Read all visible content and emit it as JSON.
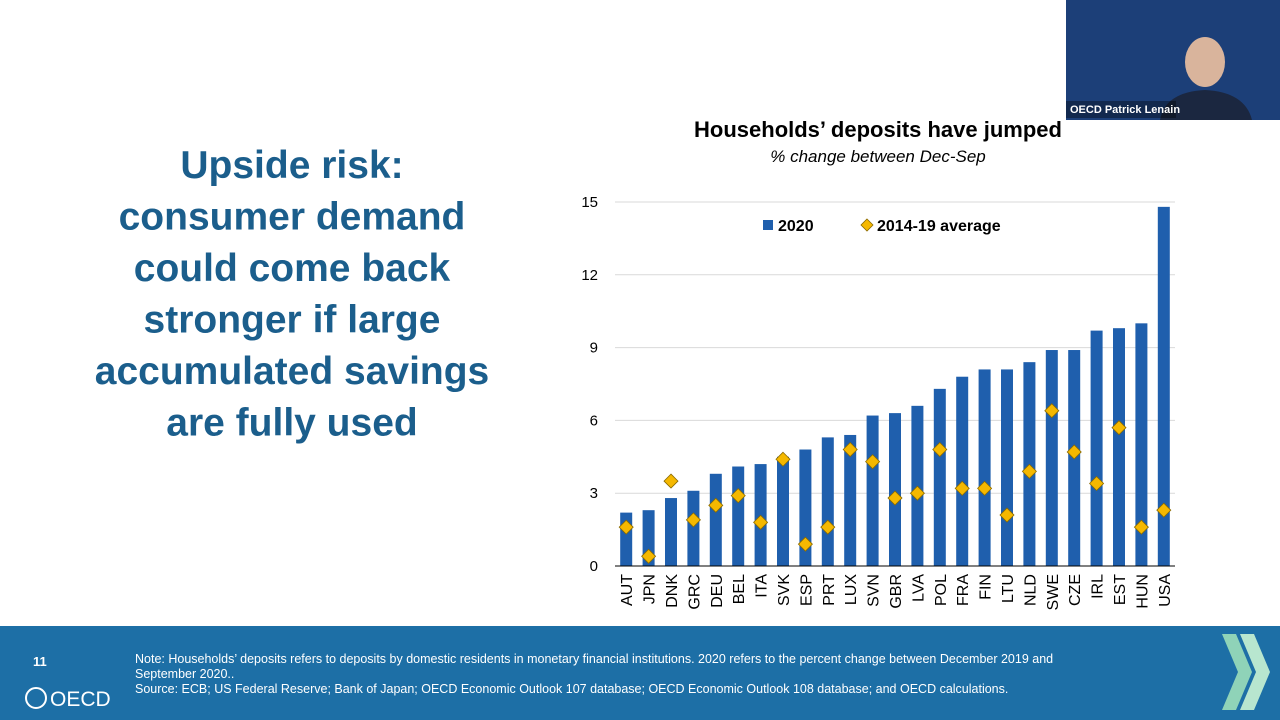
{
  "slide": {
    "heading_lines": [
      "Upside risk:",
      "consumer demand",
      "could come back",
      "stronger if large",
      "accumulated savings",
      "are fully used"
    ],
    "page_number": "11",
    "note": "Note: Households’ deposits refers to deposits by domestic residents in monetary financial institutions. 2020 refers to the percent change between December 2019 and September 2020..",
    "source": "Source: ECB; US Federal Reserve; Bank of Japan; OECD Economic Outlook 107 database; OECD Economic Outlook 108 database; and OECD calculations.",
    "logo": "OECD",
    "video_label": "OECD Patrick Lenain"
  },
  "chart_data": {
    "type": "bar",
    "title": "Households’ deposits have jumped",
    "subtitle": "% change between Dec-Sep",
    "categories": [
      "AUT",
      "JPN",
      "DNK",
      "GRC",
      "DEU",
      "BEL",
      "ITA",
      "SVK",
      "ESP",
      "PRT",
      "LUX",
      "SVN",
      "GBR",
      "LVA",
      "POL",
      "FRA",
      "FIN",
      "LTU",
      "NLD",
      "SWE",
      "CZE",
      "IRL",
      "EST",
      "HUN",
      "USA"
    ],
    "series": [
      {
        "name": "2020",
        "color": "#1f5fad",
        "marker": "bar",
        "values": [
          2.2,
          2.3,
          2.8,
          3.1,
          3.8,
          4.1,
          4.2,
          4.5,
          4.8,
          5.3,
          5.4,
          6.2,
          6.3,
          6.6,
          7.3,
          7.8,
          8.1,
          8.1,
          8.4,
          8.9,
          8.9,
          9.7,
          9.8,
          10.0,
          14.8
        ]
      },
      {
        "name": "2014-19 average",
        "color": "#f5b800",
        "marker": "diamond",
        "values": [
          1.6,
          0.4,
          3.5,
          1.9,
          2.5,
          2.9,
          1.8,
          4.4,
          0.9,
          1.6,
          4.8,
          4.3,
          2.8,
          3.0,
          4.8,
          3.2,
          3.2,
          2.1,
          3.9,
          6.4,
          4.7,
          3.4,
          5.7,
          1.6,
          2.3
        ]
      }
    ],
    "ylim": [
      0,
      15
    ],
    "yticks": [
      0,
      3,
      6,
      9,
      12,
      15
    ],
    "grid": true,
    "legend": "top"
  }
}
